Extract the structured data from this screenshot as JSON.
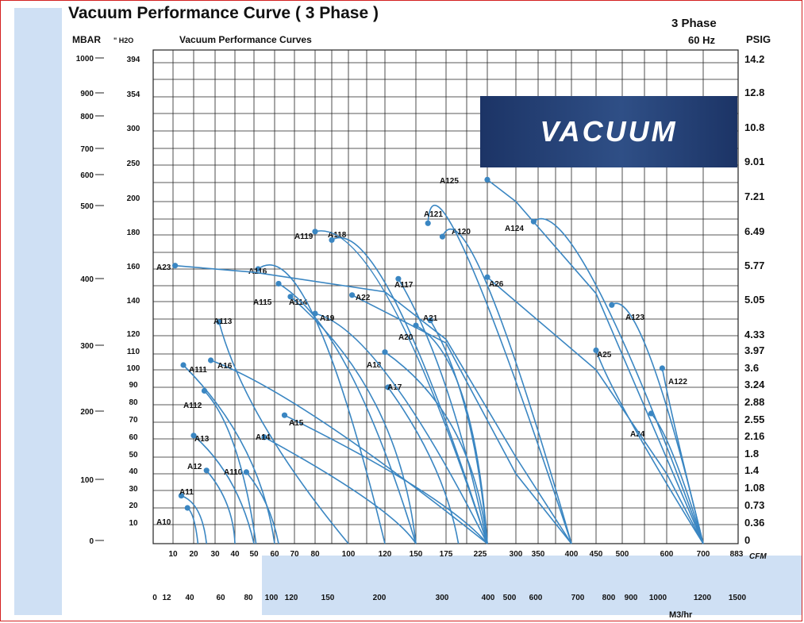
{
  "page": {
    "title": "Vacuum Performance Curve ( 3 Phase )",
    "phase": "3 Phase",
    "frequency": "60 Hz",
    "banner": "VACUUM"
  },
  "chart_data": {
    "type": "line",
    "title": "Vacuum Performance Curves",
    "colors": {
      "curve": "#3a86c2",
      "grid": "#222222",
      "banner": "#1c3466",
      "frame": "#d42020"
    },
    "axes": {
      "mbar_label": "MBAR",
      "mbar_ticks": [
        "1000",
        "900",
        "800",
        "700",
        "600",
        "500",
        "400",
        "300",
        "200",
        "100",
        "0"
      ],
      "h2o_label": "\" H2O",
      "h2o_ticks": [
        "394",
        "354",
        "300",
        "250",
        "200",
        "180",
        "160",
        "140",
        "120",
        "110",
        "100",
        "90",
        "80",
        "70",
        "60",
        "50",
        "40",
        "30",
        "20",
        "10"
      ],
      "psig_label": "PSIG",
      "psig_ticks": [
        "14.2",
        "12.8",
        "10.8",
        "9.01",
        "7.21",
        "6.49",
        "5.77",
        "5.05",
        "4.33",
        "3.97",
        "3.6",
        "3.24",
        "2.88",
        "2.55",
        "2.16",
        "1.8",
        "1.4",
        "1.08",
        "0.73",
        "0.36",
        "0"
      ],
      "cfm_unit": "CFM",
      "cfm_ticks": [
        "10",
        "20",
        "30",
        "40",
        "50",
        "60",
        "70",
        "80",
        "100",
        "120",
        "150",
        "175",
        "225",
        "300",
        "350",
        "400",
        "450",
        "500",
        "600",
        "700",
        "883"
      ],
      "m3hr_unit": "M3/hr",
      "m3hr_ticks": [
        "0",
        "12",
        "40",
        "60",
        "80",
        "100",
        "120",
        "150",
        "200",
        "300",
        "400",
        "500",
        "600",
        "700",
        "800",
        "900",
        "1000",
        "1200",
        "1500"
      ],
      "x_scale": "piecewise (CFM tick spacing)",
      "y_scale": "piecewise (inches H2O tick spacing)"
    },
    "series": [
      {
        "name": "A10",
        "points": [
          [
            17,
            20
          ],
          [
            20,
            13
          ],
          [
            22,
            0
          ]
        ]
      },
      {
        "name": "A11",
        "points": [
          [
            14,
            27
          ],
          [
            22,
            18
          ],
          [
            26,
            0
          ]
        ]
      },
      {
        "name": "A12",
        "points": [
          [
            26,
            42
          ],
          [
            36,
            22
          ],
          [
            40,
            0
          ]
        ]
      },
      {
        "name": "A13",
        "points": [
          [
            20,
            62
          ],
          [
            38,
            35
          ],
          [
            50,
            0
          ]
        ]
      },
      {
        "name": "A110",
        "points": [
          [
            46,
            41
          ],
          [
            56,
            22
          ],
          [
            62,
            0
          ]
        ]
      },
      {
        "name": "A111",
        "points": [
          [
            15,
            103
          ],
          [
            45,
            55
          ],
          [
            60,
            0
          ]
        ]
      },
      {
        "name": "A112",
        "points": [
          [
            25,
            88
          ],
          [
            40,
            55
          ],
          [
            51,
            0
          ]
        ]
      },
      {
        "name": "A113",
        "points": [
          [
            32,
            128
          ],
          [
            55,
            68
          ],
          [
            100,
            0
          ]
        ]
      },
      {
        "name": "A14",
        "points": [
          [
            55,
            61
          ],
          [
            110,
            25
          ],
          [
            150,
            0
          ]
        ]
      },
      {
        "name": "A15",
        "points": [
          [
            65,
            74
          ],
          [
            150,
            32
          ],
          [
            225,
            0
          ]
        ]
      },
      {
        "name": "A16",
        "points": [
          [
            28,
            106
          ],
          [
            85,
            70
          ],
          [
            225,
            0
          ]
        ]
      },
      {
        "name": "A17",
        "points": [
          [
            123,
            90
          ],
          [
            165,
            45
          ],
          [
            190,
            0
          ]
        ]
      },
      {
        "name": "A18",
        "points": [
          [
            120,
            111
          ],
          [
            185,
            65
          ],
          [
            225,
            0
          ]
        ]
      },
      {
        "name": "A19",
        "points": [
          [
            80,
            133
          ],
          [
            125,
            95
          ],
          [
            225,
            0
          ]
        ]
      },
      {
        "name": "A114",
        "points": [
          [
            68,
            143
          ],
          [
            115,
            80
          ],
          [
            150,
            0
          ]
        ]
      },
      {
        "name": "A115",
        "points": [
          [
            62,
            151
          ],
          [
            100,
            100
          ],
          [
            150,
            0
          ]
        ]
      },
      {
        "name": "A116",
        "points": [
          [
            52,
            160
          ],
          [
            80,
            130
          ],
          [
            120,
            0
          ]
        ]
      },
      {
        "name": "A117",
        "points": [
          [
            133,
            154
          ],
          [
            175,
            90
          ],
          [
            225,
            0
          ]
        ]
      },
      {
        "name": "A118",
        "points": [
          [
            90,
            177
          ],
          [
            130,
            140
          ],
          [
            225,
            0
          ]
        ]
      },
      {
        "name": "A119",
        "points": [
          [
            80,
            182
          ],
          [
            125,
            140
          ],
          [
            225,
            0
          ]
        ]
      },
      {
        "name": "A20",
        "points": [
          [
            150,
            126
          ],
          [
            195,
            85
          ],
          [
            225,
            0
          ]
        ]
      },
      {
        "name": "A21",
        "points": [
          [
            162,
            129
          ],
          [
            200,
            75
          ],
          [
            225,
            0
          ]
        ]
      },
      {
        "name": "A22",
        "points": [
          [
            102,
            144
          ],
          [
            175,
            116
          ],
          [
            300,
            40
          ],
          [
            400,
            0
          ]
        ]
      },
      {
        "name": "A23",
        "points": [
          [
            11,
            162
          ],
          [
            50,
            158
          ],
          [
            120,
            146
          ],
          [
            175,
            118
          ],
          [
            300,
            50
          ],
          [
            400,
            0
          ]
        ]
      },
      {
        "name": "A24",
        "points": [
          [
            565,
            75
          ],
          [
            620,
            50
          ],
          [
            700,
            0
          ]
        ]
      },
      {
        "name": "A25",
        "points": [
          [
            450,
            112
          ],
          [
            520,
            70
          ],
          [
            700,
            0
          ]
        ]
      },
      {
        "name": "A26",
        "points": [
          [
            225,
            155
          ],
          [
            300,
            140
          ],
          [
            450,
            100
          ],
          [
            600,
            40
          ],
          [
            700,
            0
          ]
        ]
      },
      {
        "name": "A120",
        "points": [
          [
            172,
            179
          ],
          [
            225,
            150
          ],
          [
            400,
            0
          ]
        ]
      },
      {
        "name": "A121",
        "points": [
          [
            160,
            187
          ],
          [
            200,
            168
          ],
          [
            400,
            0
          ]
        ]
      },
      {
        "name": "A122",
        "points": [
          [
            590,
            101
          ],
          [
            630,
            60
          ],
          [
            700,
            0
          ]
        ]
      },
      {
        "name": "A123",
        "points": [
          [
            480,
            138
          ],
          [
            560,
            110
          ],
          [
            700,
            0
          ]
        ]
      },
      {
        "name": "A124",
        "points": [
          [
            340,
            188
          ],
          [
            450,
            150
          ],
          [
            700,
            0
          ]
        ]
      },
      {
        "name": "A125",
        "points": [
          [
            225,
            230
          ],
          [
            300,
            200
          ],
          [
            450,
            145
          ],
          [
            700,
            0
          ]
        ]
      }
    ]
  }
}
